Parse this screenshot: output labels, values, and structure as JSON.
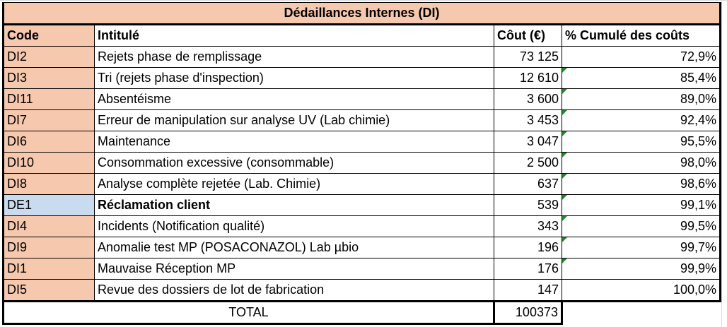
{
  "table": {
    "title": "Dédaillances Internes (DI)",
    "headers": {
      "code": "Code",
      "label": "Intitulé",
      "cost": "Côut (€)",
      "cumulative": "% Cumulé des coûts"
    },
    "rows": [
      {
        "code": "DI2",
        "label": "Rejets phase de remplissage",
        "cost": "73 125",
        "cumulative": "72,9%"
      },
      {
        "code": "DI3",
        "label": "Tri (rejets phase d'inspection)",
        "cost": "12 610",
        "cumulative": "85,4%"
      },
      {
        "code": "DI11",
        "label": "Absentéisme",
        "cost": "3 600",
        "cumulative": "89,0%"
      },
      {
        "code": "DI7",
        "label": "Erreur de manipulation sur analyse UV (Lab chimie)",
        "cost": "3 453",
        "cumulative": "92,4%"
      },
      {
        "code": "DI6",
        "label": "Maintenance",
        "cost": "3 047",
        "cumulative": "95,5%"
      },
      {
        "code": "DI10",
        "label": "Consommation excessive (consommable)",
        "cost": "2 500",
        "cumulative": "98,0%"
      },
      {
        "code": "DI8",
        "label": "Analyse complète rejetée (Lab. Chimie)",
        "cost": "637",
        "cumulative": "98,6%"
      },
      {
        "code": "DE1",
        "label": "Réclamation client",
        "cost": "539",
        "cumulative": "99,1%"
      },
      {
        "code": "DI4",
        "label": "Incidents (Notification qualité)",
        "cost": "343",
        "cumulative": "99,5%"
      },
      {
        "code": "DI9",
        "label": "Anomalie test MP (POSACONAZOL) Lab µbio",
        "cost": "196",
        "cumulative": "99,7%"
      },
      {
        "code": "DI1",
        "label": "Mauvaise Réception MP",
        "cost": "176",
        "cumulative": "99,9%"
      },
      {
        "code": "DI5",
        "label": "Revue des dossiers de lot de fabrication",
        "cost": "147",
        "cumulative": "100,0%"
      }
    ],
    "total": {
      "label": "TOTAL",
      "value": "100373"
    }
  },
  "colors": {
    "header_fill": "#f6c9ae",
    "highlight_fill": "#c9dcef",
    "comment_marker": "#1f8a2d"
  }
}
